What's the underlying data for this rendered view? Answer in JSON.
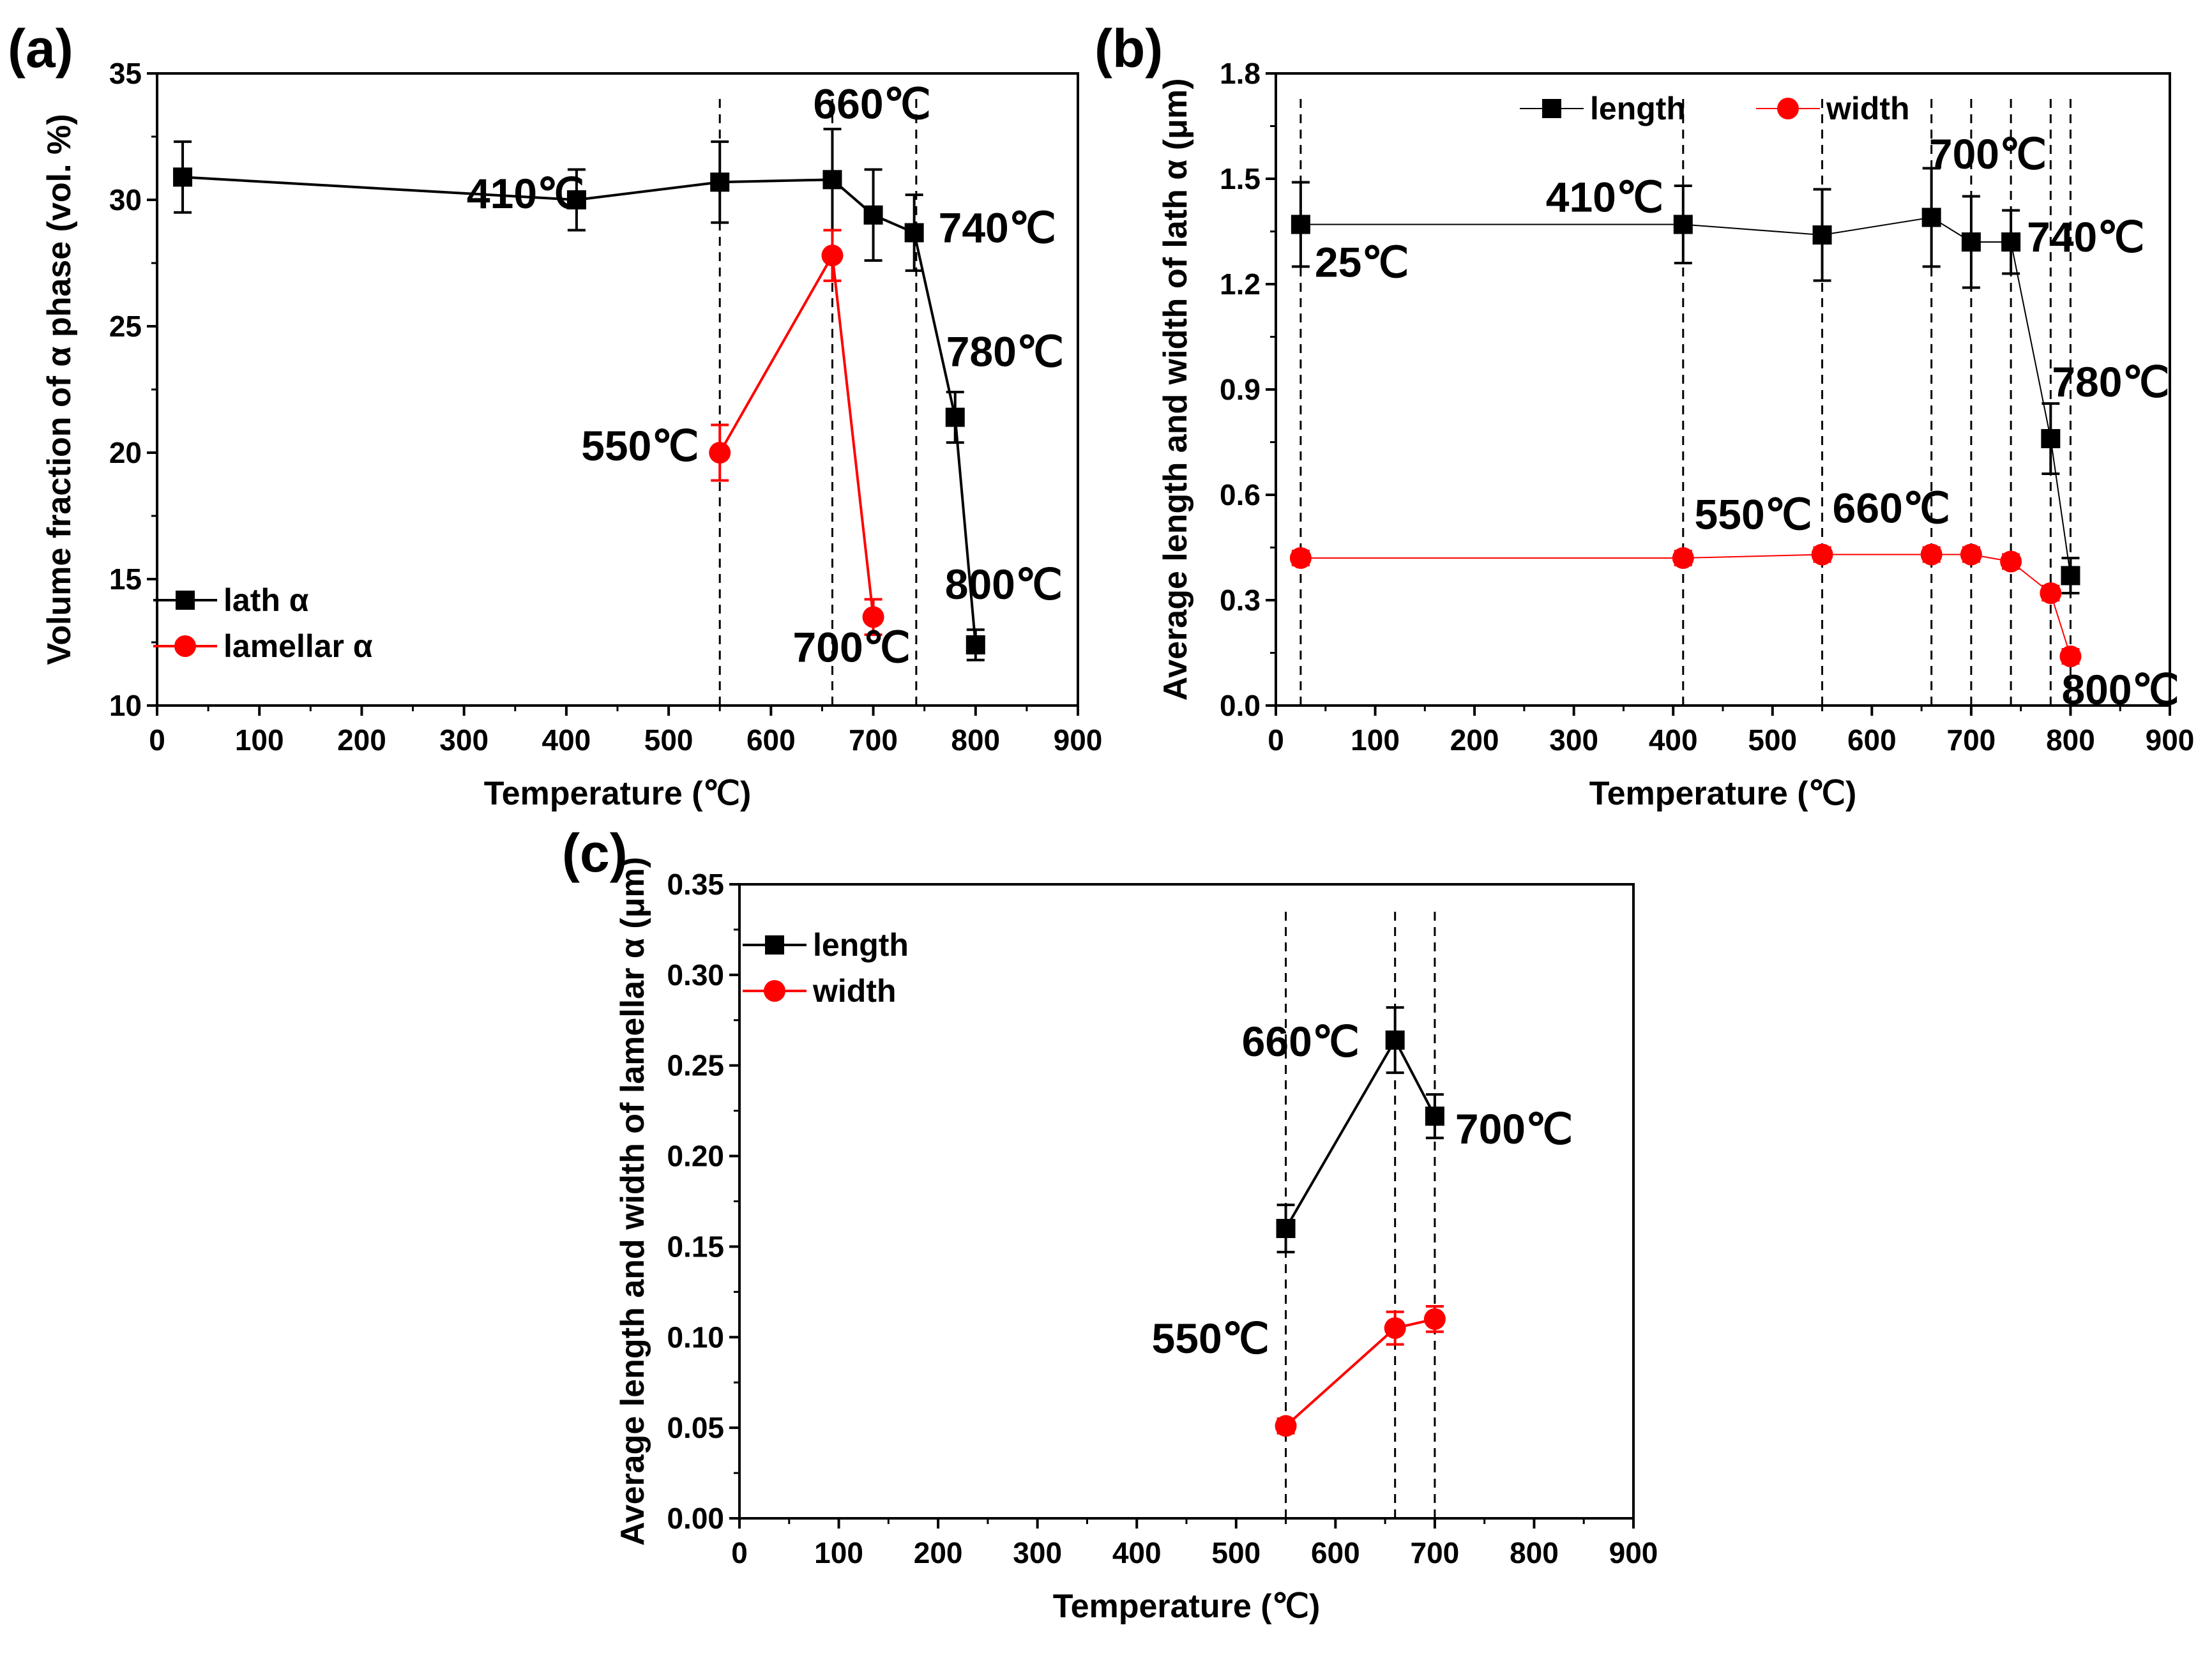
{
  "chart_data": [
    {
      "id": "a",
      "type": "line",
      "panel_label": "(a)",
      "xlabel": "Temperature (℃)",
      "ylabel": "Volume fraction of α phase (vol. %)",
      "xlim": [
        0,
        900
      ],
      "ylim": [
        10,
        35
      ],
      "xticks": [
        0,
        100,
        200,
        300,
        400,
        500,
        600,
        700,
        800,
        900
      ],
      "yticks": [
        10,
        15,
        20,
        25,
        30,
        35
      ],
      "legend_position": "bottom-left",
      "series": [
        {
          "name": "lath α",
          "color": "#000000",
          "marker": "square",
          "x": [
            25,
            410,
            550,
            660,
            700,
            740,
            780,
            800
          ],
          "y": [
            30.9,
            30.0,
            30.7,
            30.8,
            29.4,
            28.7,
            21.4,
            12.4
          ],
          "err": [
            1.4,
            1.2,
            1.6,
            2.0,
            1.8,
            1.5,
            1.0,
            0.6
          ]
        },
        {
          "name": "lamellar α",
          "color": "#ff0000",
          "marker": "circle",
          "x": [
            550,
            660,
            700
          ],
          "y": [
            20.0,
            27.8,
            13.5
          ],
          "err": [
            1.1,
            1.0,
            0.7
          ]
        }
      ],
      "guide_lines_x": [
        550,
        660,
        742
      ],
      "annotations": [
        {
          "text": "410℃",
          "x": 410,
          "y": 30.0
        },
        {
          "text": "660℃",
          "x": 660,
          "y": 30.8
        },
        {
          "text": "740℃",
          "x": 740,
          "y": 28.7
        },
        {
          "text": "780℃",
          "x": 780,
          "y": 21.4
        },
        {
          "text": "550℃",
          "x": 550,
          "y": 20.0
        },
        {
          "text": "800℃",
          "x": 800,
          "y": 12.4
        },
        {
          "text": "700℃",
          "x": 700,
          "y": 13.5
        }
      ]
    },
    {
      "id": "b",
      "type": "line",
      "panel_label": "(b)",
      "xlabel": "Temperature (℃)",
      "ylabel": "Average length and width of lath α (μm)",
      "xlim": [
        0,
        900
      ],
      "ylim": [
        0.0,
        1.8
      ],
      "xticks": [
        0,
        100,
        200,
        300,
        400,
        500,
        600,
        700,
        800,
        900
      ],
      "yticks": [
        0.0,
        0.3,
        0.6,
        0.9,
        1.2,
        1.5,
        1.8
      ],
      "legend_position": "top",
      "series": [
        {
          "name": "length",
          "color": "#000000",
          "marker": "square",
          "x": [
            25,
            410,
            550,
            660,
            700,
            740,
            780,
            800
          ],
          "y": [
            1.37,
            1.37,
            1.34,
            1.39,
            1.32,
            1.32,
            0.76,
            0.37
          ],
          "err": [
            0.12,
            0.11,
            0.13,
            0.14,
            0.13,
            0.09,
            0.1,
            0.05
          ]
        },
        {
          "name": "width",
          "color": "#ff0000",
          "marker": "circle",
          "x": [
            25,
            410,
            550,
            660,
            700,
            740,
            780,
            800
          ],
          "y": [
            0.42,
            0.42,
            0.43,
            0.43,
            0.43,
            0.41,
            0.32,
            0.14
          ],
          "err": [
            0.02,
            0.02,
            0.02,
            0.02,
            0.02,
            0.02,
            0.02,
            0.02
          ]
        }
      ],
      "guide_lines_x": [
        25,
        410,
        550,
        660,
        700,
        740,
        780,
        800
      ],
      "annotations": [
        {
          "text": "25℃",
          "x": 25,
          "y": 1.37
        },
        {
          "text": "410℃",
          "x": 410,
          "y": 1.37
        },
        {
          "text": "700℃",
          "x": 700,
          "y": 1.32
        },
        {
          "text": "740℃",
          "x": 740,
          "y": 1.32
        },
        {
          "text": "780℃",
          "x": 780,
          "y": 0.76
        },
        {
          "text": "550℃",
          "x": 550,
          "y": 0.43
        },
        {
          "text": "660℃",
          "x": 660,
          "y": 0.43
        },
        {
          "text": "800℃",
          "x": 800,
          "y": 0.14
        }
      ]
    },
    {
      "id": "c",
      "type": "line",
      "panel_label": "(c)",
      "xlabel": "Temperature (℃)",
      "ylabel": "Average length and width of lamellar α (μm)",
      "xlim": [
        0,
        900
      ],
      "ylim": [
        0.0,
        0.35
      ],
      "xticks": [
        0,
        100,
        200,
        300,
        400,
        500,
        600,
        700,
        800,
        900
      ],
      "yticks": [
        0.0,
        0.05,
        0.1,
        0.15,
        0.2,
        0.25,
        0.3,
        0.35
      ],
      "legend_position": "top-left",
      "series": [
        {
          "name": "length",
          "color": "#000000",
          "marker": "square",
          "x": [
            550,
            660,
            700
          ],
          "y": [
            0.16,
            0.264,
            0.222
          ],
          "err": [
            0.013,
            0.018,
            0.012
          ]
        },
        {
          "name": "width",
          "color": "#ff0000",
          "marker": "circle",
          "x": [
            550,
            660,
            700
          ],
          "y": [
            0.051,
            0.105,
            0.11
          ],
          "err": [
            0.004,
            0.009,
            0.007
          ]
        }
      ],
      "guide_lines_x": [
        550,
        660,
        700
      ],
      "annotations": [
        {
          "text": "660℃",
          "x": 660,
          "y": 0.264
        },
        {
          "text": "700℃",
          "x": 700,
          "y": 0.222
        },
        {
          "text": "550℃",
          "x": 550,
          "y": 0.16
        }
      ]
    }
  ]
}
